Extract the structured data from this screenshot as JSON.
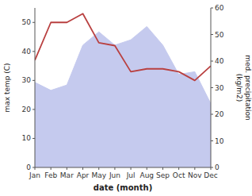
{
  "chart_data": {
    "type": "line",
    "xlabel": "date (month)",
    "ylabel": "max temp (C)",
    "y2label": "med. precipitation\n(kg/m2)",
    "categories": [
      "Jan",
      "Feb",
      "Mar",
      "Apr",
      "May",
      "Jun",
      "Jul",
      "Aug",
      "Sep",
      "Oct",
      "Nov",
      "Dec"
    ],
    "series": [
      {
        "type": "area",
        "color": "#c5caee",
        "axis": "y2",
        "values": [
          32,
          29,
          31,
          46,
          51,
          46,
          48,
          53,
          46,
          35,
          36,
          24
        ]
      },
      {
        "type": "line",
        "color": "#b94040",
        "values": [
          37,
          50,
          50,
          53,
          43,
          42,
          33,
          34,
          34,
          33,
          30,
          35
        ]
      }
    ],
    "ylim": [
      0,
      55
    ],
    "yticks": [
      0,
      10,
      20,
      30,
      40,
      50
    ],
    "y2lim": [
      0,
      60
    ],
    "y2ticks": [
      0,
      10,
      20,
      30,
      40,
      50,
      60
    ],
    "grid": false
  }
}
